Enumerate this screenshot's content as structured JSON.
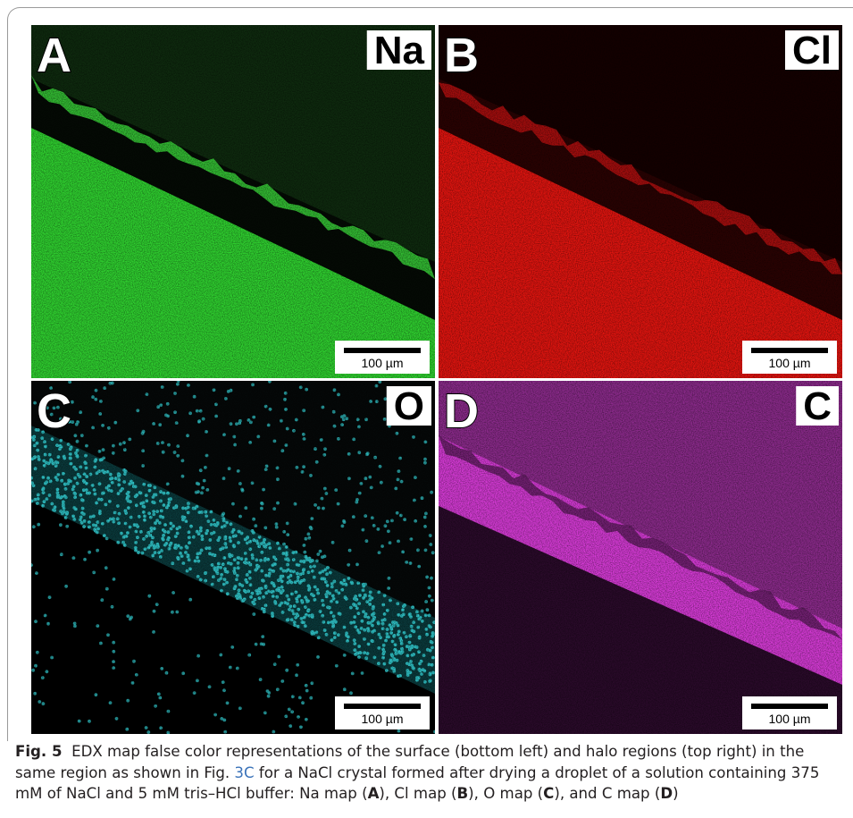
{
  "figure": {
    "panels": [
      {
        "letter": "A",
        "element": "Na",
        "scale_bar": "100 µm"
      },
      {
        "letter": "B",
        "element": "Cl",
        "scale_bar": "100 µm"
      },
      {
        "letter": "C",
        "element": "O",
        "scale_bar": "100 µm"
      },
      {
        "letter": "D",
        "element": "C",
        "scale_bar": "100 µm"
      }
    ],
    "caption": {
      "label": "Fig. 5",
      "runs": [
        "EDX map false color representations of the surface (bottom left) and halo regions (top right) in the same region as shown in Fig. ",
        "3C",
        " for a NaCl crystal formed after drying a droplet of a solution containing 375 mM of NaCl and 5 mM tris–HCl buffer: Na map (",
        "A",
        "), Cl map (",
        "B",
        "), O map (",
        "C",
        "), and C map (",
        "D",
        ")"
      ]
    }
  }
}
